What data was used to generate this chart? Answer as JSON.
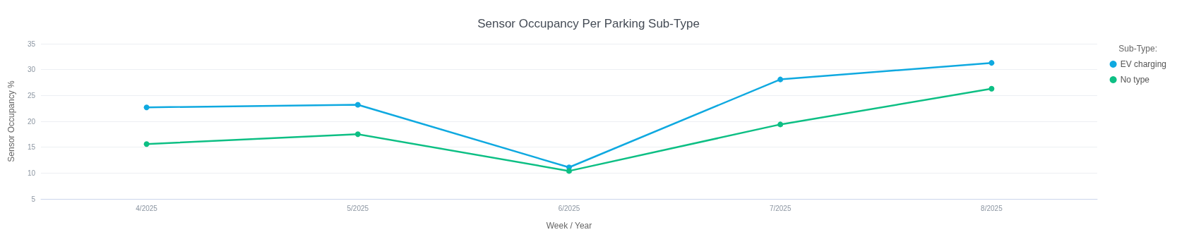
{
  "chart_data": {
    "type": "line",
    "title": "Sensor Occupancy Per Parking Sub-Type",
    "xlabel": "Week / Year",
    "ylabel": "Sensor Occupancy %",
    "legend_title": "Sub-Type:",
    "categories": [
      "4/2025",
      "5/2025",
      "6/2025",
      "7/2025",
      "8/2025"
    ],
    "series": [
      {
        "name": "EV charging",
        "color": "#0fa9e0",
        "values": [
          22.7,
          23.2,
          11.1,
          28.1,
          31.3
        ]
      },
      {
        "name": "No type",
        "color": "#0dbf84",
        "values": [
          15.6,
          17.5,
          10.4,
          19.4,
          26.3
        ]
      }
    ],
    "ylim": [
      5,
      35
    ],
    "yticks": [
      5,
      10,
      15,
      20,
      25,
      30,
      35
    ],
    "grid": "y",
    "legend": "right",
    "marker": "circle",
    "line_style": "solid"
  }
}
